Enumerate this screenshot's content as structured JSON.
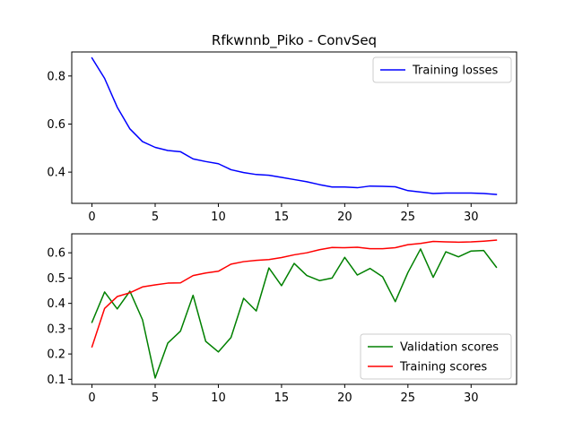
{
  "chart_data": [
    {
      "type": "line",
      "title": "Rfkwnnb_Piko - ConvSeq",
      "xlabel": "",
      "ylabel": "",
      "xlim": [
        -1.6,
        33.6
      ],
      "ylim": [
        0.27,
        0.9
      ],
      "xticks": [
        0,
        5,
        10,
        15,
        20,
        25,
        30
      ],
      "yticks": [
        0.4,
        0.6,
        0.8
      ],
      "ytick_labels": [
        "0.4",
        "0.6",
        "0.8"
      ],
      "legend": "upper-right",
      "grid": false,
      "x": [
        0,
        1,
        2,
        3,
        4,
        5,
        6,
        7,
        8,
        9,
        10,
        11,
        12,
        13,
        14,
        15,
        16,
        17,
        18,
        19,
        20,
        21,
        22,
        23,
        24,
        25,
        26,
        27,
        28,
        29,
        30,
        31,
        32
      ],
      "series": [
        {
          "name": "Training losses",
          "color": "#0000ff",
          "values": [
            0.875,
            0.79,
            0.67,
            0.58,
            0.527,
            0.503,
            0.49,
            0.485,
            0.455,
            0.444,
            0.435,
            0.41,
            0.398,
            0.39,
            0.387,
            0.378,
            0.369,
            0.36,
            0.348,
            0.338,
            0.338,
            0.335,
            0.342,
            0.341,
            0.339,
            0.323,
            0.317,
            0.311,
            0.313,
            0.313,
            0.313,
            0.311,
            0.307
          ]
        }
      ]
    },
    {
      "type": "line",
      "title": "",
      "xlabel": "",
      "ylabel": "",
      "xlim": [
        -1.6,
        33.6
      ],
      "ylim": [
        0.08,
        0.675
      ],
      "xticks": [
        0,
        5,
        10,
        15,
        20,
        25,
        30
      ],
      "yticks": [
        0.1,
        0.2,
        0.3,
        0.4,
        0.5,
        0.6
      ],
      "ytick_labels": [
        "0.1",
        "0.2",
        "0.3",
        "0.4",
        "0.5",
        "0.6"
      ],
      "legend": "lower-right",
      "grid": false,
      "x": [
        0,
        1,
        2,
        3,
        4,
        5,
        6,
        7,
        8,
        9,
        10,
        11,
        12,
        13,
        14,
        15,
        16,
        17,
        18,
        19,
        20,
        21,
        22,
        23,
        24,
        25,
        26,
        27,
        28,
        29,
        30,
        31,
        32
      ],
      "series": [
        {
          "name": "Validation scores",
          "color": "#008000",
          "values": [
            0.325,
            0.445,
            0.378,
            0.448,
            0.335,
            0.105,
            0.243,
            0.29,
            0.432,
            0.25,
            0.208,
            0.265,
            0.42,
            0.37,
            0.54,
            0.47,
            0.558,
            0.51,
            0.49,
            0.5,
            0.582,
            0.512,
            0.538,
            0.505,
            0.407,
            0.522,
            0.615,
            0.503,
            0.604,
            0.584,
            0.607,
            0.609,
            0.543
          ]
        },
        {
          "name": "Training scores",
          "color": "#ff0000",
          "values": [
            0.228,
            0.38,
            0.427,
            0.442,
            0.465,
            0.473,
            0.48,
            0.481,
            0.51,
            0.52,
            0.527,
            0.555,
            0.565,
            0.57,
            0.573,
            0.581,
            0.592,
            0.6,
            0.612,
            0.621,
            0.62,
            0.622,
            0.616,
            0.616,
            0.62,
            0.632,
            0.637,
            0.645,
            0.643,
            0.642,
            0.643,
            0.646,
            0.65
          ]
        }
      ]
    }
  ]
}
